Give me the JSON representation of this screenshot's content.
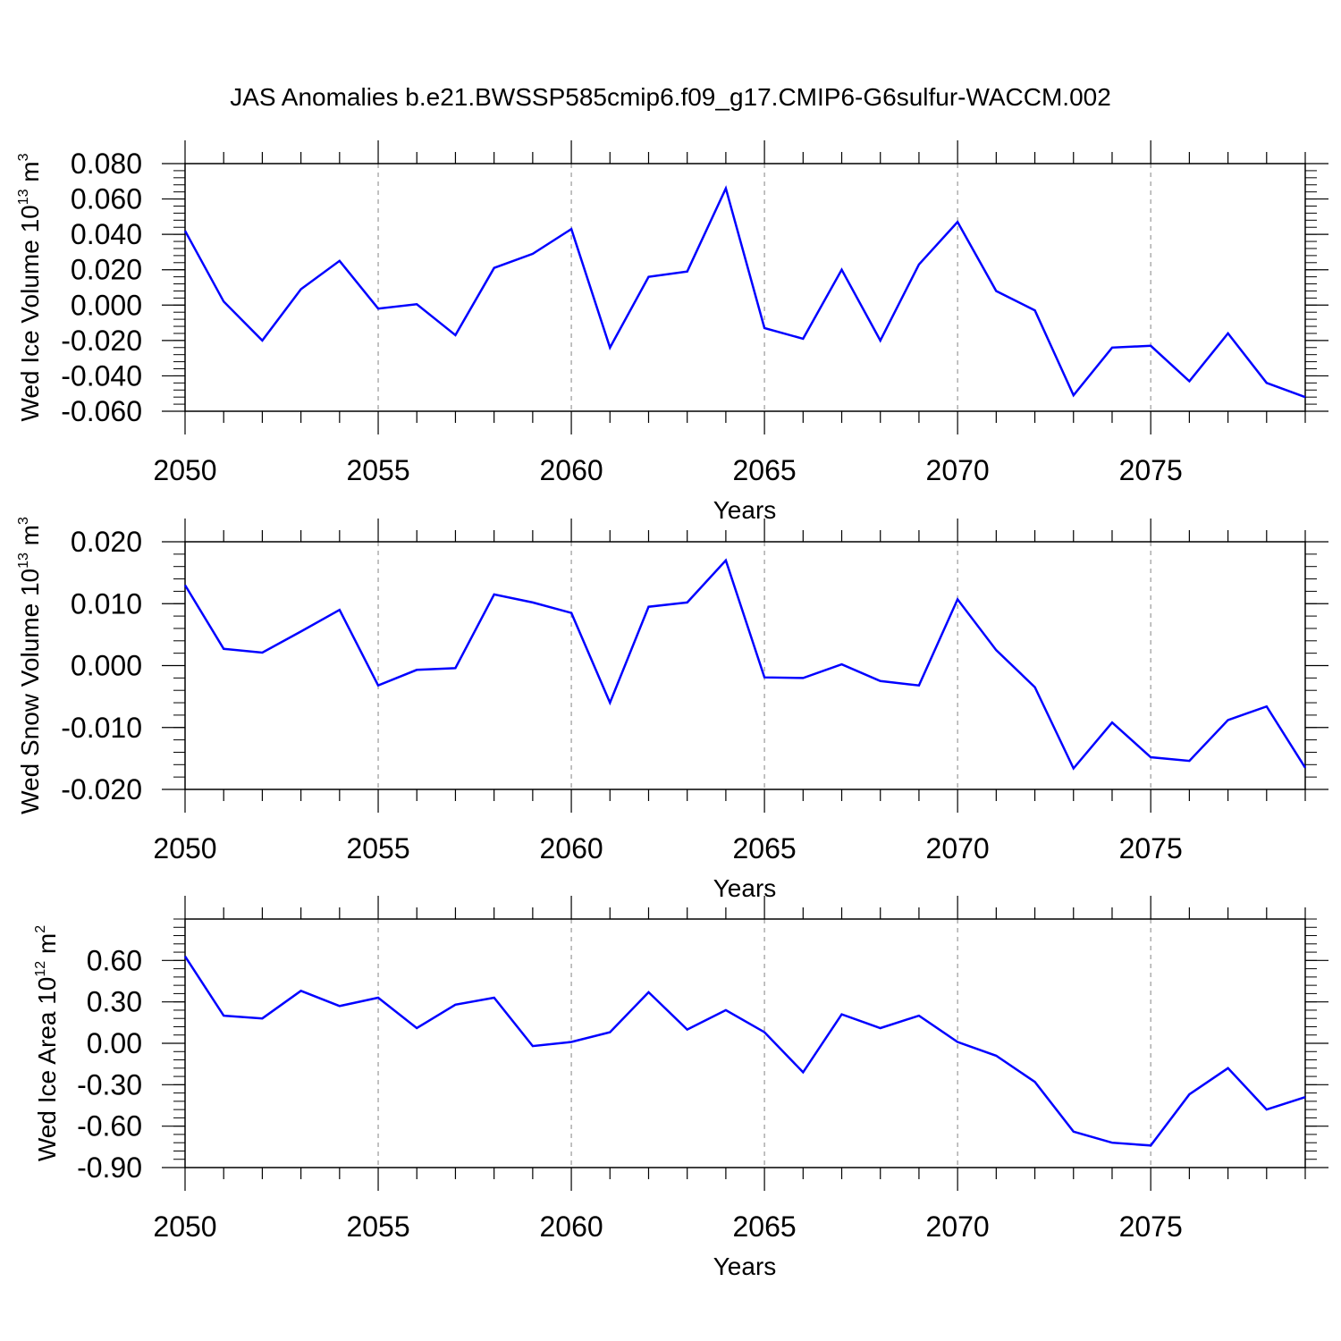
{
  "title": "JAS Anomalies b.e21.BWSSP585cmip6.f09_g17.CMIP6-G6sulfur-WACCM.002",
  "colors": {
    "line": "#0000ff",
    "axis": "#000000",
    "grid": "#999999",
    "background": "#ffffff"
  },
  "chart_data": [
    {
      "type": "line",
      "xlabel": "Years",
      "ylabel": {
        "text": "Wed Ice Volume 10",
        "sup": "13",
        "unit": " m",
        "unit_sup": "3"
      },
      "xlim": [
        2050,
        2079
      ],
      "ylim": [
        -0.06,
        0.08
      ],
      "x_ticks": [
        2050,
        2055,
        2060,
        2065,
        2070,
        2075
      ],
      "x_tick_labels": [
        "2050",
        "2055",
        "2060",
        "2065",
        "2070",
        "2075"
      ],
      "y_ticks": [
        0.08,
        0.06,
        0.04,
        0.02,
        0.0,
        -0.02,
        -0.04,
        -0.06
      ],
      "y_tick_labels": [
        "0.080",
        "0.060",
        "0.040",
        "0.020",
        "0.000",
        "-0.020",
        "-0.040",
        "-0.060"
      ],
      "grid": "vertical dashed at major x ticks",
      "x": [
        2050,
        2051,
        2052,
        2053,
        2054,
        2055,
        2056,
        2057,
        2058,
        2059,
        2060,
        2061,
        2062,
        2063,
        2064,
        2065,
        2066,
        2067,
        2068,
        2069,
        2070,
        2071,
        2072,
        2073,
        2074,
        2075,
        2076,
        2077,
        2078,
        2079
      ],
      "values": [
        0.042,
        0.002,
        -0.02,
        0.009,
        0.025,
        -0.002,
        0.0005,
        -0.017,
        0.021,
        0.029,
        0.043,
        -0.024,
        0.016,
        0.019,
        0.066,
        -0.013,
        -0.019,
        0.02,
        -0.02,
        0.023,
        0.047,
        0.008,
        -0.003,
        -0.051,
        -0.024,
        -0.023,
        -0.043,
        -0.016,
        -0.044,
        -0.052
      ]
    },
    {
      "type": "line",
      "xlabel": "Years",
      "ylabel": {
        "text": "Wed Snow Volume 10",
        "sup": "13",
        "unit": " m",
        "unit_sup": "3"
      },
      "xlim": [
        2050,
        2079
      ],
      "ylim": [
        -0.02,
        0.02
      ],
      "x_ticks": [
        2050,
        2055,
        2060,
        2065,
        2070,
        2075
      ],
      "x_tick_labels": [
        "2050",
        "2055",
        "2060",
        "2065",
        "2070",
        "2075"
      ],
      "y_ticks": [
        0.02,
        0.01,
        0.0,
        -0.01,
        -0.02
      ],
      "y_tick_labels": [
        "0.020",
        "0.010",
        "0.000",
        "-0.010",
        "-0.020"
      ],
      "grid": "vertical dashed at major x ticks",
      "x": [
        2050,
        2051,
        2052,
        2053,
        2054,
        2055,
        2056,
        2057,
        2058,
        2059,
        2060,
        2061,
        2062,
        2063,
        2064,
        2065,
        2066,
        2067,
        2068,
        2069,
        2070,
        2071,
        2072,
        2073,
        2074,
        2075,
        2076,
        2077,
        2078,
        2079
      ],
      "values": [
        0.013,
        0.0027,
        0.0021,
        0.0055,
        0.009,
        -0.0032,
        -0.0007,
        -0.0004,
        0.0115,
        0.0102,
        0.0085,
        -0.006,
        0.0095,
        0.0102,
        0.017,
        -0.0019,
        -0.002,
        0.0002,
        -0.0025,
        -0.0032,
        0.0107,
        0.0025,
        -0.0035,
        -0.0166,
        -0.0092,
        -0.0148,
        -0.0154,
        -0.0088,
        -0.0066,
        -0.0165
      ]
    },
    {
      "type": "line",
      "xlabel": "Years",
      "ylabel": {
        "text": "Wed Ice Area 10",
        "sup": "12",
        "unit": " m",
        "unit_sup": "2"
      },
      "xlim": [
        2050,
        2079
      ],
      "ylim": [
        -0.9,
        0.9
      ],
      "x_ticks": [
        2050,
        2055,
        2060,
        2065,
        2070,
        2075
      ],
      "x_tick_labels": [
        "2050",
        "2055",
        "2060",
        "2065",
        "2070",
        "2075"
      ],
      "y_ticks": [
        0.6,
        0.3,
        0.0,
        -0.3,
        -0.6,
        -0.9
      ],
      "y_tick_labels": [
        "0.60",
        "0.30",
        "0.00",
        "-0.30",
        "-0.60",
        "-0.90"
      ],
      "grid": "vertical dashed at major x ticks",
      "x": [
        2050,
        2051,
        2052,
        2053,
        2054,
        2055,
        2056,
        2057,
        2058,
        2059,
        2060,
        2061,
        2062,
        2063,
        2064,
        2065,
        2066,
        2067,
        2068,
        2069,
        2070,
        2071,
        2072,
        2073,
        2074,
        2075,
        2076,
        2077,
        2078,
        2079
      ],
      "values": [
        0.63,
        0.2,
        0.18,
        0.38,
        0.27,
        0.33,
        0.11,
        0.28,
        0.33,
        -0.02,
        0.01,
        0.08,
        0.37,
        0.1,
        0.24,
        0.08,
        -0.21,
        0.21,
        0.11,
        0.2,
        0.01,
        -0.09,
        -0.28,
        -0.64,
        -0.72,
        -0.74,
        -0.37,
        -0.18,
        -0.48,
        -0.39
      ]
    }
  ]
}
